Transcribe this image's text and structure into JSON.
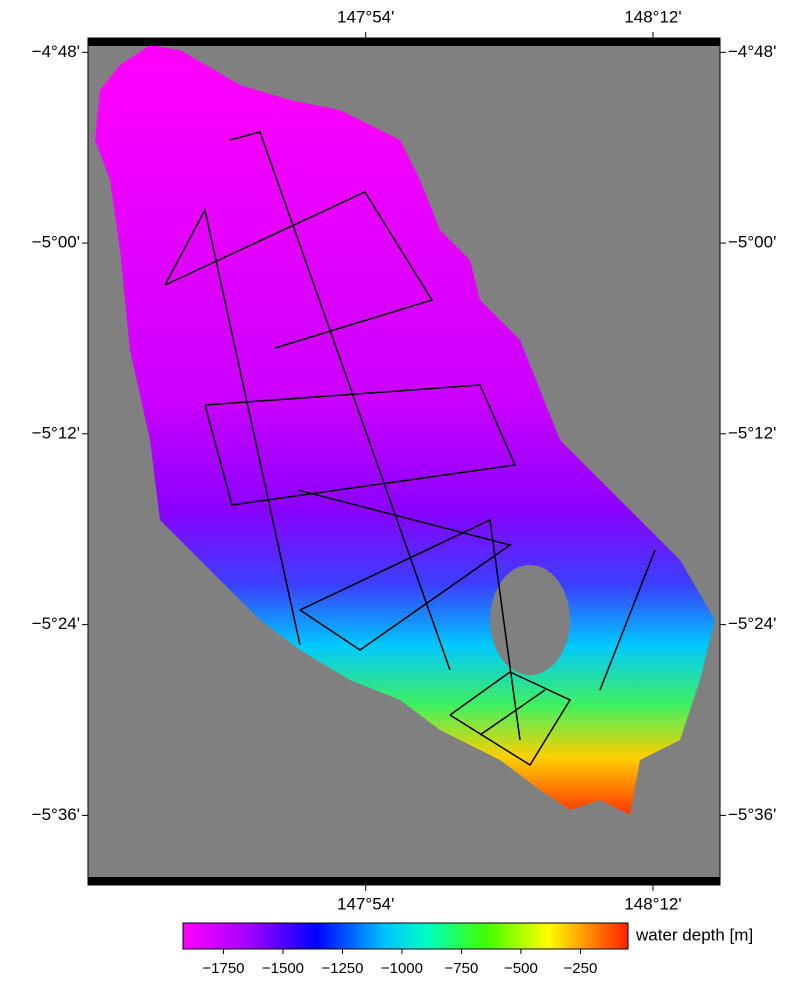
{
  "map": {
    "xlim": [
      147.61,
      148.27
    ],
    "ylim": [
      -5.673,
      -4.785
    ],
    "xticks": [
      {
        "value": 147.9,
        "label": "147°54'"
      },
      {
        "value": 148.2,
        "label": "148°12'"
      }
    ],
    "yticks": [
      {
        "value": -4.8,
        "label": "−4°48'"
      },
      {
        "value": -5.0,
        "label": "−5°00'"
      },
      {
        "value": -5.2,
        "label": "−5°12'"
      },
      {
        "value": -5.4,
        "label": "−5°24'"
      },
      {
        "value": -5.6,
        "label": "−5°36'"
      }
    ]
  },
  "colorbar": {
    "label": "water depth [m]",
    "lim": [
      -1920,
      -50
    ],
    "ticks": [
      {
        "value": -1750,
        "label": "−1750"
      },
      {
        "value": -1500,
        "label": "−1500"
      },
      {
        "value": -1250,
        "label": "−1250"
      },
      {
        "value": -1000,
        "label": "−1000"
      },
      {
        "value": -750,
        "label": "−750"
      },
      {
        "value": -500,
        "label": "−500"
      },
      {
        "value": -250,
        "label": "−250"
      }
    ]
  }
}
